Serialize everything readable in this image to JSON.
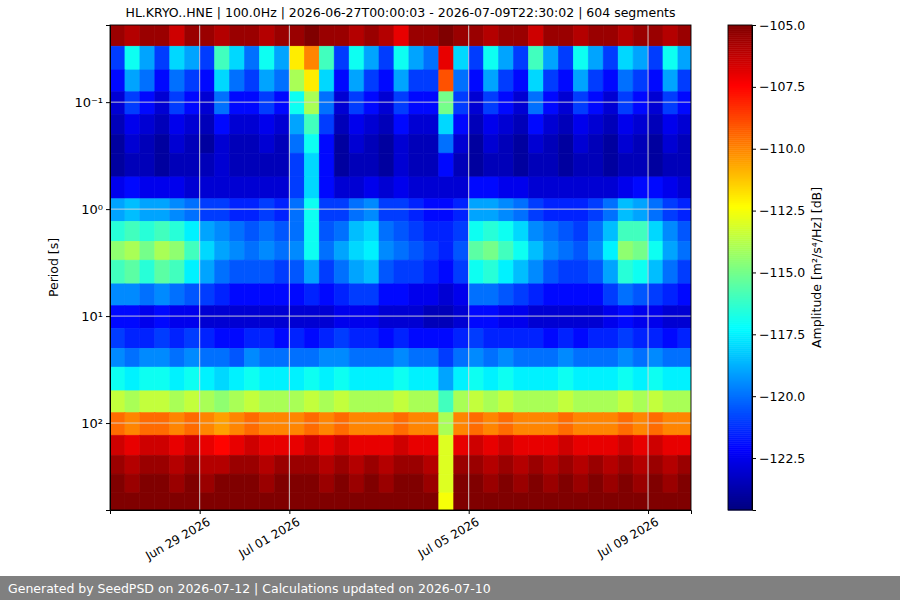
{
  "chart_data": {
    "type": "heatmap",
    "title": "HL.KRYO..HNE | 100.0Hz | 2026-06-27T00:00:03 - 2026-07-09T22:30:02 | 604 segments",
    "ylabel": "Period [s]",
    "colorbar_label": "Amplitude [m²/s⁴/Hz] [dB]",
    "footer": "Generated by SeedPSD on 2026-07-12 | Calculations updated on 2026-07-10",
    "log": "y",
    "grid": true,
    "xlim": [
      "2026-06-27T00:00",
      "2026-07-09T23:00"
    ],
    "xticks": [
      {
        "value": "2026-06-29T00:00",
        "label": "Jun 29 2026"
      },
      {
        "value": "2026-07-01T00:00",
        "label": "Jul 01 2026"
      },
      {
        "value": "2026-07-05T00:00",
        "label": "Jul 05 2026"
      },
      {
        "value": "2026-07-09T00:00",
        "label": "Jul 09 2026"
      }
    ],
    "ylim": [
      0.019,
      650
    ],
    "yticks": [
      {
        "value": 0.1,
        "label": "10⁻¹"
      },
      {
        "value": 1,
        "label": "10⁰"
      },
      {
        "value": 10,
        "label": "10¹"
      },
      {
        "value": 100,
        "label": "10²"
      }
    ],
    "clim": [
      -124.6,
      -105
    ],
    "cticks": [
      {
        "value": -105,
        "label": "−105.0"
      },
      {
        "value": -107.5,
        "label": "−107.5"
      },
      {
        "value": -110,
        "label": "−110.0"
      },
      {
        "value": -112.5,
        "label": "−112.5"
      },
      {
        "value": -115,
        "label": "−115.0"
      },
      {
        "value": -117.5,
        "label": "−117.5"
      },
      {
        "value": -120,
        "label": "−120.0"
      },
      {
        "value": -122.5,
        "label": "−122.5"
      }
    ],
    "x_bins": [
      "2026-06-27T00:00",
      "2026-06-27T08:00",
      "2026-06-27T16:00",
      "2026-06-28T00:00",
      "2026-06-28T08:00",
      "2026-06-28T16:00",
      "2026-06-29T00:00",
      "2026-06-29T08:00",
      "2026-06-29T16:00",
      "2026-06-30T00:00",
      "2026-06-30T08:00",
      "2026-06-30T16:00",
      "2026-07-01T00:00",
      "2026-07-01T08:00",
      "2026-07-01T16:00",
      "2026-07-02T00:00",
      "2026-07-02T08:00",
      "2026-07-02T16:00",
      "2026-07-03T00:00",
      "2026-07-03T08:00",
      "2026-07-03T16:00",
      "2026-07-04T00:00",
      "2026-07-04T08:00",
      "2026-07-04T16:00",
      "2026-07-05T00:00",
      "2026-07-05T08:00",
      "2026-07-05T16:00",
      "2026-07-06T00:00",
      "2026-07-06T08:00",
      "2026-07-06T16:00",
      "2026-07-07T00:00",
      "2026-07-07T08:00",
      "2026-07-07T16:00",
      "2026-07-08T00:00",
      "2026-07-08T08:00",
      "2026-07-08T16:00",
      "2026-07-09T00:00",
      "2026-07-09T08:00",
      "2026-07-09T16:00",
      "2026-07-10T00:00"
    ],
    "y_bins": [
      0.019,
      0.03,
      0.05,
      0.08,
      0.13,
      0.2,
      0.3,
      0.5,
      0.8,
      1.3,
      2,
      3,
      5,
      8,
      13,
      20,
      30,
      50,
      80,
      130,
      200,
      300,
      450,
      650
    ],
    "cells": [
      [
        -105.5,
        -106,
        -105.5,
        -105.5,
        -106.5,
        -105.5,
        -105.5,
        -106,
        -105.5,
        -105.5,
        -106,
        -105.5,
        -105.5,
        -105,
        -105.5,
        -105.5,
        -106,
        -105.5,
        -106,
        -107,
        -105.5,
        -105.5,
        -105,
        -105.5,
        -105.5,
        -106,
        -105.5,
        -105.5,
        -106.5,
        -105.5,
        -105.5,
        -106,
        -105.5,
        -105.5,
        -106,
        -105.5,
        -105.5,
        -106,
        -105.5
      ],
      [
        -121,
        -117,
        -119,
        -121,
        -118,
        -119,
        -121,
        -116,
        -118,
        -120,
        -117,
        -119,
        -112,
        -110,
        -116,
        -121,
        -117,
        -119,
        -121,
        -117,
        -119,
        -120,
        -107,
        -118,
        -121,
        -117,
        -119,
        -121,
        -116,
        -119,
        -121,
        -117,
        -119,
        -121,
        -118,
        -119,
        -121,
        -117,
        -119
      ],
      [
        -122,
        -119,
        -120,
        -122,
        -120,
        -121,
        -122,
        -118,
        -120,
        -121,
        -119,
        -120,
        -114,
        -112,
        -118,
        -122,
        -119,
        -121,
        -122,
        -119,
        -121,
        -121,
        -109,
        -120,
        -122,
        -119,
        -121,
        -122,
        -118,
        -121,
        -122,
        -119,
        -121,
        -122,
        -120,
        -121,
        -122,
        -119,
        -121
      ],
      [
        -123,
        -121,
        -122,
        -123,
        -121,
        -122,
        -123,
        -120,
        -122,
        -122,
        -121,
        -122,
        -117,
        -114,
        -120,
        -123,
        -121,
        -122,
        -123,
        -121,
        -122,
        -122,
        -115,
        -121,
        -123,
        -121,
        -122,
        -123,
        -120,
        -122,
        -123,
        -121,
        -122,
        -123,
        -121,
        -122,
        -123,
        -121,
        -122
      ],
      [
        -123.5,
        -122.5,
        -123,
        -123.5,
        -122.5,
        -123,
        -123.5,
        -122,
        -123,
        -123,
        -122.5,
        -123,
        -119,
        -116,
        -121,
        -123.5,
        -122.5,
        -123,
        -123.5,
        -122,
        -123,
        -123,
        -118,
        -122,
        -123.5,
        -122.5,
        -123,
        -123.5,
        -122,
        -123,
        -123.5,
        -122.5,
        -123,
        -123.5,
        -122.5,
        -123,
        -123.5,
        -122.5,
        -123
      ],
      [
        -124,
        -123,
        -123.5,
        -124,
        -123,
        -123.5,
        -124,
        -123,
        -123.5,
        -123.5,
        -123,
        -123.5,
        -120,
        -117,
        -122,
        -124,
        -123,
        -123.5,
        -124,
        -123,
        -123.5,
        -123.5,
        -120,
        -123,
        -124,
        -123,
        -123.5,
        -124,
        -123,
        -123.5,
        -124,
        -123,
        -123.5,
        -124,
        -123,
        -123.5,
        -124,
        -123,
        -123.5
      ],
      [
        -124,
        -123.5,
        -123.5,
        -124,
        -123.5,
        -123.5,
        -123.5,
        -123,
        -123.5,
        -123.5,
        -123.5,
        -123.5,
        -121,
        -118,
        -122,
        -124,
        -123.5,
        -123.5,
        -124,
        -123,
        -123.5,
        -123.5,
        -122,
        -123.5,
        -124,
        -123.5,
        -123.5,
        -124,
        -123.5,
        -123.5,
        -124,
        -123.5,
        -123.5,
        -124,
        -123.5,
        -123.5,
        -124,
        -123.5,
        -123.5
      ],
      [
        -122.5,
        -122,
        -122.5,
        -122.5,
        -122.5,
        -123,
        -123,
        -123,
        -123,
        -123,
        -123,
        -123,
        -121,
        -118,
        -122,
        -123,
        -123,
        -122.5,
        -123,
        -122.5,
        -123,
        -123,
        -123,
        -123,
        -122,
        -122,
        -122.5,
        -122.5,
        -123,
        -123,
        -123,
        -123,
        -123,
        -123,
        -122.5,
        -122,
        -122,
        -122.5,
        -123
      ],
      [
        -119,
        -118.5,
        -119,
        -119,
        -119.5,
        -120,
        -121,
        -121,
        -121.5,
        -121.5,
        -121,
        -121.5,
        -120,
        -117,
        -121,
        -121,
        -120,
        -119.5,
        -121,
        -121,
        -121.5,
        -122,
        -122,
        -121.5,
        -119,
        -119,
        -119.5,
        -120,
        -121,
        -121.5,
        -121.5,
        -121.5,
        -121,
        -120,
        -118.5,
        -119,
        -120,
        -121,
        -121.5
      ],
      [
        -116.5,
        -116,
        -116.5,
        -116,
        -116.5,
        -117.5,
        -119,
        -119.5,
        -120,
        -120.5,
        -120,
        -120.5,
        -120,
        -117,
        -120.5,
        -120,
        -118.5,
        -118,
        -120,
        -120.5,
        -121,
        -121.5,
        -121.5,
        -121,
        -117,
        -116.5,
        -117,
        -118,
        -119.5,
        -120,
        -120.5,
        -121,
        -120,
        -118.5,
        -116,
        -116,
        -118,
        -119.5,
        -120.5
      ],
      [
        -114.5,
        -114,
        -115,
        -114,
        -114.5,
        -116,
        -118,
        -119,
        -119.5,
        -120,
        -119.5,
        -120,
        -119.5,
        -117,
        -120,
        -119,
        -118,
        -117.5,
        -119.5,
        -120,
        -120.5,
        -121,
        -121.5,
        -120.5,
        -115.5,
        -115,
        -116,
        -117,
        -118.5,
        -119.5,
        -120,
        -120.5,
        -119.5,
        -117.5,
        -114.5,
        -115,
        -117,
        -119,
        -120
      ],
      [
        -116,
        -115.5,
        -116.5,
        -115.5,
        -116,
        -117.5,
        -119,
        -120,
        -120.5,
        -120.5,
        -120.5,
        -121,
        -120.5,
        -119,
        -121,
        -120,
        -119,
        -118.5,
        -120.5,
        -121,
        -121,
        -121.5,
        -122,
        -121,
        -117,
        -116.5,
        -117.5,
        -118.5,
        -119.5,
        -120.5,
        -121,
        -121,
        -120.5,
        -119,
        -116.5,
        -117,
        -118.5,
        -120,
        -121
      ],
      [
        -119.5,
        -119.5,
        -120,
        -119.5,
        -120,
        -120.5,
        -121,
        -121.5,
        -122,
        -122,
        -122,
        -122,
        -122,
        -121.5,
        -122,
        -121.5,
        -121,
        -121,
        -122,
        -122,
        -122.5,
        -122.5,
        -123,
        -122.5,
        -120,
        -120,
        -120.5,
        -121,
        -121.5,
        -122,
        -122,
        -122,
        -122,
        -121,
        -120,
        -120.5,
        -121,
        -121.5,
        -122
      ],
      [
        -122,
        -122,
        -122.5,
        -122,
        -122.5,
        -122.5,
        -123,
        -123,
        -123,
        -123,
        -123,
        -123,
        -123,
        -123,
        -123,
        -122.5,
        -122.5,
        -122.5,
        -123,
        -123,
        -123,
        -123.5,
        -123.5,
        -123,
        -122,
        -122,
        -122.5,
        -122.5,
        -123,
        -123,
        -123,
        -123,
        -123,
        -122.5,
        -122,
        -122.5,
        -122.5,
        -123,
        -123
      ],
      [
        -121,
        -121.5,
        -121.5,
        -121,
        -121.5,
        -121,
        -121.5,
        -122,
        -122,
        -121.5,
        -121.5,
        -122,
        -121.5,
        -122,
        -121.5,
        -121,
        -121.5,
        -121.5,
        -122,
        -121.5,
        -122,
        -122,
        -122,
        -121.5,
        -121,
        -121.5,
        -121.5,
        -121.5,
        -121.5,
        -122,
        -121.5,
        -122,
        -121.5,
        -121.5,
        -121,
        -121.5,
        -121.5,
        -122,
        -121.5
      ],
      [
        -119.5,
        -120,
        -119.5,
        -119.5,
        -120,
        -119.5,
        -120,
        -120,
        -120.5,
        -119.5,
        -120,
        -120,
        -120,
        -120,
        -119.5,
        -119.5,
        -120,
        -120,
        -120,
        -119.5,
        -120,
        -120,
        -121,
        -120,
        -119.5,
        -120,
        -119.5,
        -120,
        -120,
        -120,
        -119.5,
        -120,
        -120,
        -120,
        -119.5,
        -120,
        -119.5,
        -120,
        -120
      ],
      [
        -117,
        -117.5,
        -117,
        -117,
        -117.5,
        -117,
        -117.5,
        -118,
        -117.5,
        -117,
        -117.5,
        -117.5,
        -117.5,
        -117,
        -117.5,
        -117,
        -117.5,
        -117.5,
        -117.5,
        -117,
        -117.5,
        -117.5,
        -119,
        -117.5,
        -117,
        -117.5,
        -117,
        -117.5,
        -117.5,
        -117.5,
        -117,
        -117.5,
        -117.5,
        -117.5,
        -117,
        -117.5,
        -117,
        -117.5,
        -117.5
      ],
      [
        -113.5,
        -114,
        -113.5,
        -113.5,
        -114,
        -113.5,
        -114,
        -114.5,
        -114,
        -113.5,
        -114,
        -114,
        -114,
        -113.5,
        -114,
        -113.5,
        -114,
        -114,
        -114,
        -113.5,
        -114,
        -114,
        -116,
        -114,
        -113.5,
        -114,
        -113.5,
        -114,
        -114,
        -114,
        -113.5,
        -114,
        -114,
        -114,
        -113.5,
        -114,
        -113.5,
        -114,
        -114
      ],
      [
        -109.5,
        -110,
        -109.5,
        -109.5,
        -110,
        -109.5,
        -110,
        -110.5,
        -110,
        -109.5,
        -110,
        -110,
        -110,
        -109.5,
        -110,
        -109.5,
        -110,
        -110,
        -110,
        -109.5,
        -110,
        -110,
        -114,
        -110,
        -109.5,
        -110,
        -109.5,
        -110,
        -110,
        -110,
        -109.5,
        -110,
        -110,
        -110,
        -109.5,
        -110,
        -109.5,
        -110,
        -110
      ],
      [
        -106.5,
        -107,
        -106.5,
        -106.5,
        -107,
        -106.5,
        -107,
        -107.5,
        -107,
        -106.5,
        -107,
        -107,
        -107,
        -106.5,
        -107,
        -106.5,
        -107,
        -107,
        -107,
        -106.5,
        -107,
        -107,
        -113,
        -107,
        -106.5,
        -107,
        -106.5,
        -107,
        -107,
        -107,
        -106.5,
        -107,
        -107,
        -107,
        -106.5,
        -107,
        -106.5,
        -107,
        -107
      ],
      [
        -105.5,
        -106,
        -105.5,
        -105.5,
        -106,
        -105.5,
        -106,
        -106,
        -105.5,
        -105.5,
        -106,
        -105.5,
        -105.5,
        -105.5,
        -106,
        -105.5,
        -106,
        -105.5,
        -106,
        -105.5,
        -105.5,
        -106,
        -113,
        -105.5,
        -105.5,
        -106,
        -105.5,
        -106,
        -105.5,
        -106,
        -105.5,
        -106,
        -105.5,
        -106,
        -105.5,
        -106,
        -105.5,
        -106,
        -105.5
      ],
      [
        -105,
        -105.5,
        -105,
        -105,
        -105.5,
        -105,
        -105.5,
        -105,
        -105,
        -105,
        -105.5,
        -105,
        -105,
        -105,
        -105.5,
        -105,
        -105.5,
        -105,
        -105.5,
        -105,
        -105,
        -105.5,
        -113,
        -105,
        -105,
        -105.5,
        -105,
        -105.5,
        -105,
        -105.5,
        -105,
        -105.5,
        -105,
        -105.5,
        -105,
        -105.5,
        -105,
        -105.5,
        -105
      ],
      [
        -105,
        -105,
        -105,
        -105,
        -105,
        -105,
        -105,
        -105,
        -105,
        -105,
        -105,
        -105,
        -105,
        -105,
        -105,
        -105,
        -105,
        -105,
        -105,
        -105,
        -105,
        -105,
        -112.5,
        -105,
        -105,
        -105,
        -105,
        -105,
        -105,
        -105,
        -105,
        -105,
        -105,
        -105,
        -105,
        -105,
        -105,
        -105,
        -105
      ]
    ]
  }
}
